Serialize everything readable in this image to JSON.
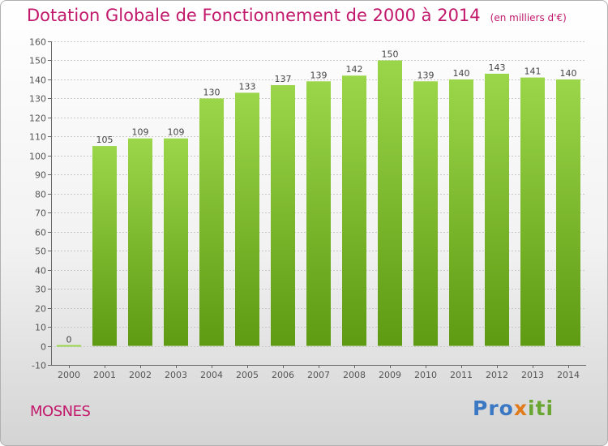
{
  "title": "Dotation Globale de Fonctionnement de 2000 à 2014",
  "subtitle": "(en milliers d'€)",
  "commune": "MOSNES",
  "brand": {
    "p1": "Pro",
    "p2": "x",
    "p3": "iti"
  },
  "colors": {
    "title": "#c2186b",
    "bar_top": "#9bd64a",
    "bar_bottom": "#5e9a12",
    "grid": "#c8c8c8"
  },
  "chart_data": {
    "type": "bar",
    "title": "Dotation Globale de Fonctionnement de 2000 à 2014",
    "subtitle": "(en milliers d'€)",
    "categories": [
      "2000",
      "2001",
      "2002",
      "2003",
      "2004",
      "2005",
      "2006",
      "2007",
      "2008",
      "2009",
      "2010",
      "2011",
      "2012",
      "2013",
      "2014"
    ],
    "values": [
      0,
      105,
      109,
      109,
      130,
      133,
      137,
      139,
      142,
      150,
      139,
      140,
      143,
      141,
      140
    ],
    "ylim": [
      -10,
      160
    ],
    "yticks": [
      -10,
      0,
      10,
      20,
      30,
      40,
      50,
      60,
      70,
      80,
      90,
      100,
      110,
      120,
      130,
      140,
      150,
      160
    ],
    "grid": true,
    "xlabel": "",
    "ylabel": ""
  }
}
